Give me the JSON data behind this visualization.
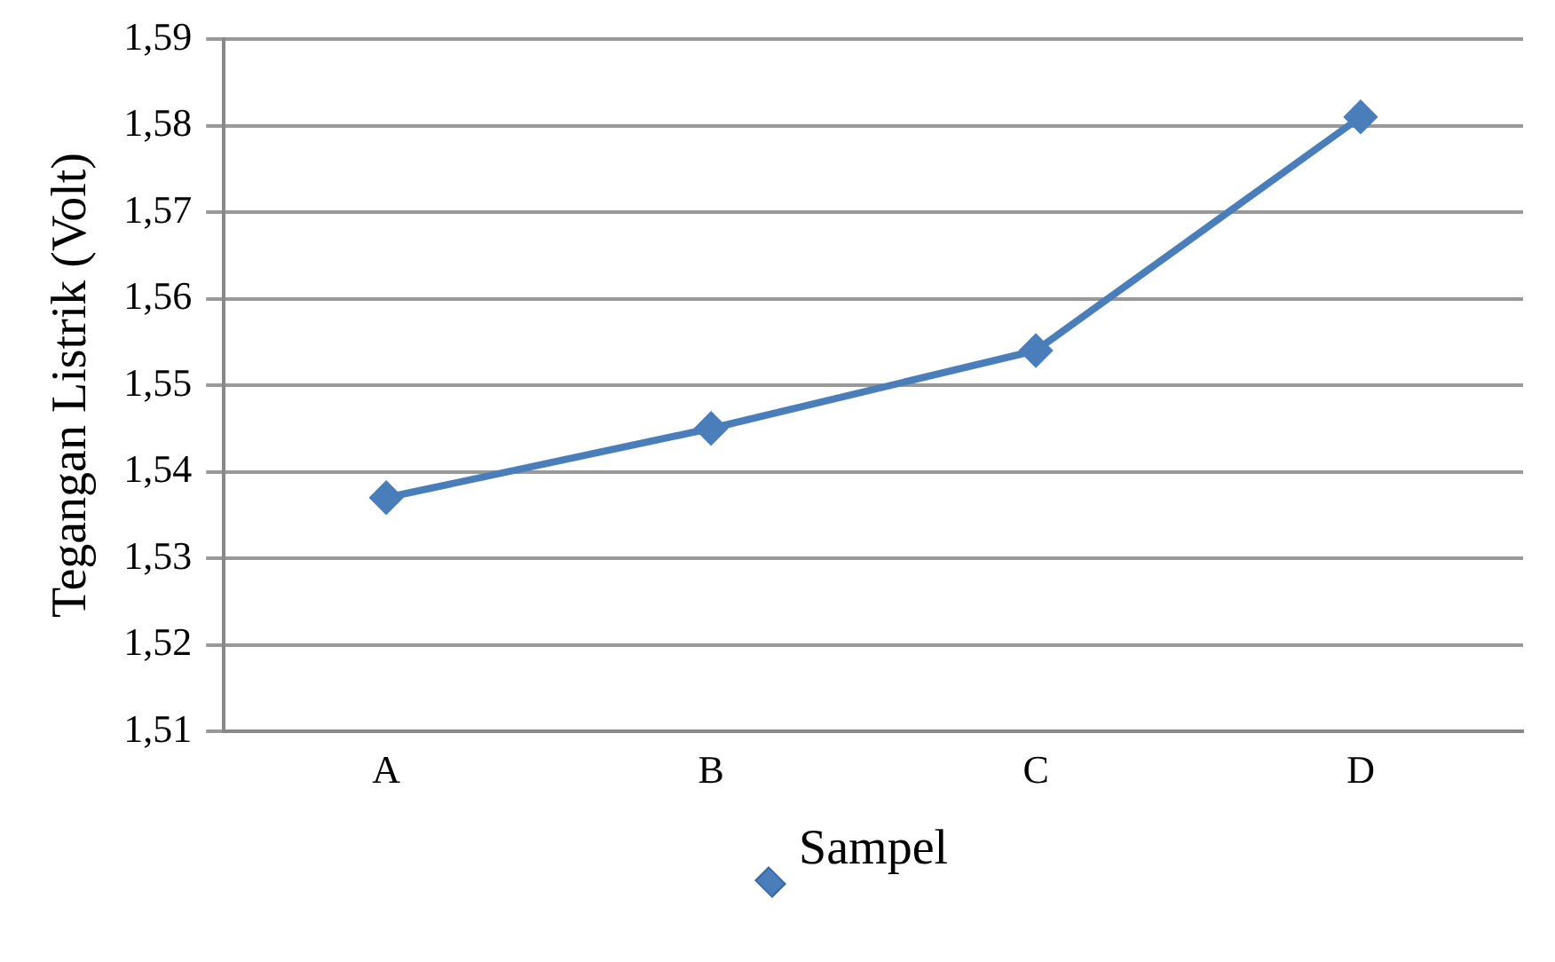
{
  "chart_data": {
    "type": "line",
    "xlabel": "Sampel",
    "ylabel": "Tegangan Listrik (Volt)",
    "categories": [
      "A",
      "B",
      "C",
      "D"
    ],
    "series": [
      {
        "color": "#4a7ebb",
        "values": [
          1.537,
          1.545,
          1.554,
          1.581
        ]
      }
    ],
    "ylim": [
      1.51,
      1.59
    ],
    "yticks": [
      {
        "value": 1.51,
        "label": "1,51"
      },
      {
        "value": 1.52,
        "label": "1,52"
      },
      {
        "value": 1.53,
        "label": "1,53"
      },
      {
        "value": 1.54,
        "label": "1,54"
      },
      {
        "value": 1.55,
        "label": "1,55"
      },
      {
        "value": 1.56,
        "label": "1,56"
      },
      {
        "value": 1.57,
        "label": "1,57"
      },
      {
        "value": 1.58,
        "label": "1,58"
      },
      {
        "value": 1.59,
        "label": "1,59"
      }
    ],
    "grid": "y",
    "marker": "diamond",
    "line_style": "solid"
  }
}
